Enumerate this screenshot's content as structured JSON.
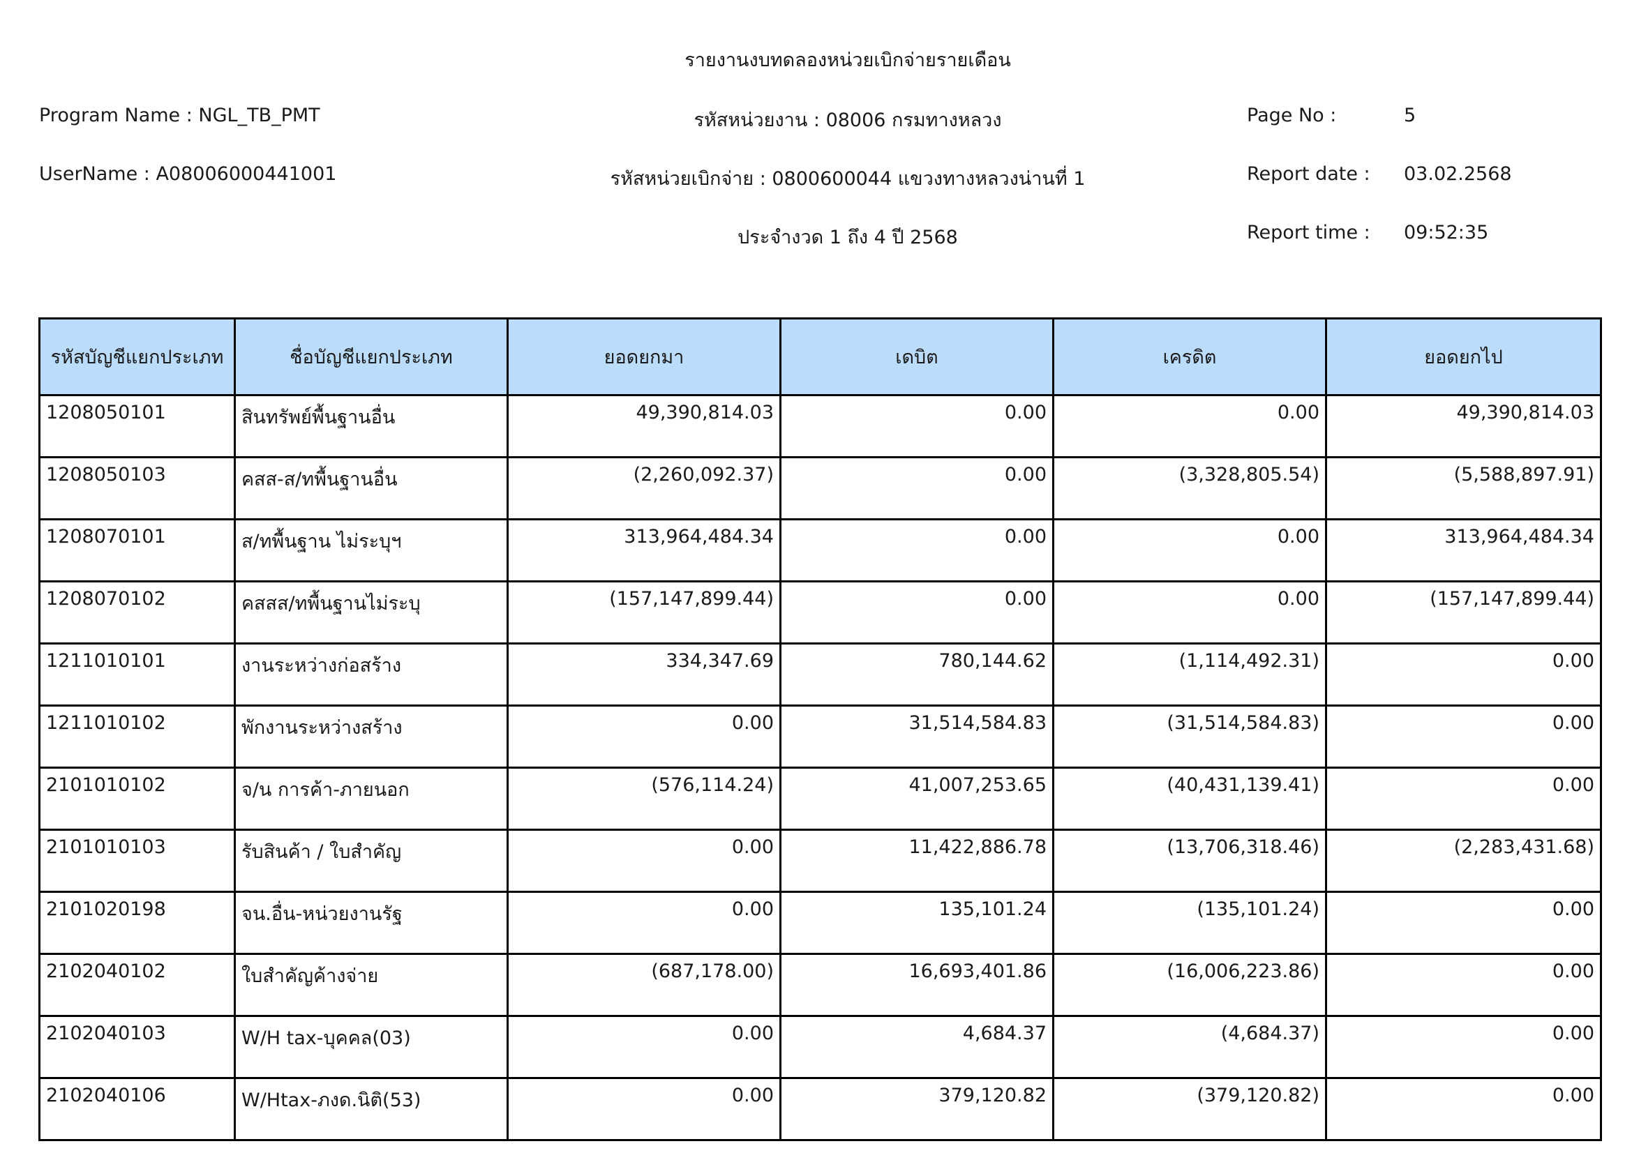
{
  "report": {
    "title": "รายงานงบทดลองหน่วยเบิกจ่ายรายเดือน",
    "program_name": "Program Name : NGL_TB_PMT",
    "username": "UserName : A08006000441001",
    "agency": "รหัสหน่วยงาน : 08006 กรมทางหลวง",
    "disbursing_unit": "รหัสหน่วยเบิกจ่าย : 0800600044 แขวงทางหลวงน่านที่ 1",
    "period": "ประจำงวด 1 ถึง 4 ปี 2568",
    "page_no_label": "Page No :",
    "page_no": "5",
    "report_date_label": "Report date :",
    "report_date": "03.02.2568",
    "report_time_label": "Report time :",
    "report_time": "09:52:35"
  },
  "table": {
    "columns": [
      "รหัสบัญชีแยกประเภท",
      "ชื่อบัญชีแยกประเภท",
      "ยอดยกมา",
      "เดบิต",
      "เครดิต",
      "ยอดยกไป"
    ],
    "header_color": "#bcdcfc",
    "rows": [
      [
        "1208050101",
        "สินทรัพย์พื้นฐานอื่น",
        "49,390,814.03",
        "0.00",
        "0.00",
        "49,390,814.03"
      ],
      [
        "1208050103",
        "คสส-ส/ทพื้นฐานอื่น",
        "(2,260,092.37)",
        "0.00",
        "(3,328,805.54)",
        "(5,588,897.91)"
      ],
      [
        "1208070101",
        "ส/ทพื้นฐาน ไม่ระบุฯ",
        "313,964,484.34",
        "0.00",
        "0.00",
        "313,964,484.34"
      ],
      [
        "1208070102",
        "คสสส/ทพื้นฐานไม่ระบุ",
        "(157,147,899.44)",
        "0.00",
        "0.00",
        "(157,147,899.44)"
      ],
      [
        "1211010101",
        "งานระหว่างก่อสร้าง",
        "334,347.69",
        "780,144.62",
        "(1,114,492.31)",
        "0.00"
      ],
      [
        "1211010102",
        "พักงานระหว่างสร้าง",
        "0.00",
        "31,514,584.83",
        "(31,514,584.83)",
        "0.00"
      ],
      [
        "2101010102",
        "จ/น การค้า-ภายนอก",
        "(576,114.24)",
        "41,007,253.65",
        "(40,431,139.41)",
        "0.00"
      ],
      [
        "2101010103",
        "รับสินค้า / ใบสำคัญ",
        "0.00",
        "11,422,886.78",
        "(13,706,318.46)",
        "(2,283,431.68)"
      ],
      [
        "2101020198",
        "จน.อื่น-หน่วยงานรัฐ",
        "0.00",
        "135,101.24",
        "(135,101.24)",
        "0.00"
      ],
      [
        "2102040102",
        "ใบสำคัญค้างจ่าย",
        "(687,178.00)",
        "16,693,401.86",
        "(16,006,223.86)",
        "0.00"
      ],
      [
        "2102040103",
        "W/H tax-บุคคล(03)",
        "0.00",
        "4,684.37",
        "(4,684.37)",
        "0.00"
      ],
      [
        "2102040106",
        "W/Htax-ภงด.นิติ(53)",
        "0.00",
        "379,120.82",
        "(379,120.82)",
        "0.00"
      ]
    ]
  }
}
